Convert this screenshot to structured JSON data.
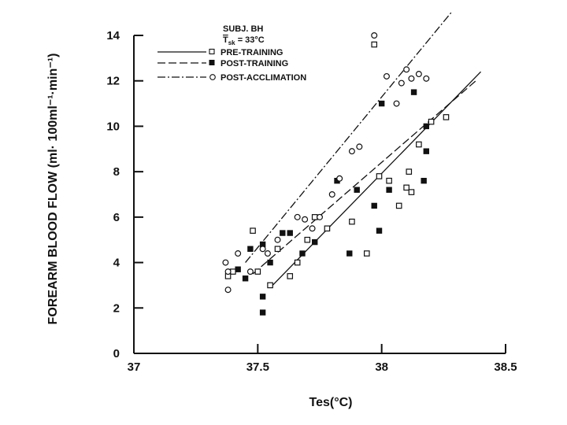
{
  "chart_data": {
    "type": "scatter",
    "xlabel": "Tes(°C)",
    "ylabel": "FOREARM BLOOD FLOW (ml· 100ml⁻¹·min⁻¹)",
    "xlim": [
      37,
      38.5
    ],
    "ylim": [
      0,
      14
    ],
    "x_ticks": [
      "37",
      "37.5",
      "38",
      "38.5"
    ],
    "y_ticks": [
      "0",
      "2",
      "4",
      "6",
      "8",
      "10",
      "12",
      "14"
    ],
    "annotation": {
      "subject": "SUBJ. BH",
      "tsk_symbol": "T",
      "tsk_sub": "sk",
      "tsk_value": " = 33°C"
    },
    "legend_position": "top-left",
    "series": [
      {
        "name": "PRE-TRAINING",
        "marker": "open-square",
        "line_style": "solid",
        "line": [
          [
            37.56,
            3.0
          ],
          [
            38.4,
            12.4
          ]
        ],
        "points": [
          [
            37.4,
            3.6
          ],
          [
            37.38,
            3.4
          ],
          [
            37.48,
            5.4
          ],
          [
            37.5,
            3.6
          ],
          [
            37.55,
            3.0
          ],
          [
            37.58,
            4.6
          ],
          [
            37.63,
            3.4
          ],
          [
            37.66,
            4.0
          ],
          [
            37.7,
            5.0
          ],
          [
            37.73,
            6.0
          ],
          [
            37.78,
            5.5
          ],
          [
            37.88,
            5.8
          ],
          [
            37.94,
            4.4
          ],
          [
            37.97,
            13.6
          ],
          [
            37.99,
            7.8
          ],
          [
            38.03,
            7.6
          ],
          [
            38.1,
            7.3
          ],
          [
            38.12,
            7.1
          ],
          [
            38.11,
            8.0
          ],
          [
            38.07,
            6.5
          ],
          [
            38.2,
            10.2
          ],
          [
            38.26,
            10.4
          ],
          [
            38.15,
            9.2
          ]
        ]
      },
      {
        "name": "POST-TRAINING",
        "marker": "filled-square",
        "line_style": "dashed",
        "line": [
          [
            37.48,
            3.5
          ],
          [
            38.38,
            12.0
          ]
        ],
        "points": [
          [
            37.42,
            3.7
          ],
          [
            37.45,
            3.3
          ],
          [
            37.47,
            4.6
          ],
          [
            37.52,
            2.5
          ],
          [
            37.52,
            1.8
          ],
          [
            37.52,
            4.8
          ],
          [
            37.55,
            4.0
          ],
          [
            37.6,
            5.3
          ],
          [
            37.63,
            5.3
          ],
          [
            37.68,
            4.4
          ],
          [
            37.73,
            4.9
          ],
          [
            37.82,
            7.6
          ],
          [
            37.87,
            4.4
          ],
          [
            37.9,
            7.2
          ],
          [
            37.97,
            6.5
          ],
          [
            37.99,
            5.4
          ],
          [
            38.0,
            11.0
          ],
          [
            38.03,
            7.2
          ],
          [
            38.13,
            11.5
          ],
          [
            38.18,
            10.0
          ],
          [
            38.18,
            8.9
          ],
          [
            38.17,
            7.6
          ]
        ]
      },
      {
        "name": "POST-ACCLIMATION",
        "marker": "open-circle",
        "line_style": "dash-dot",
        "line": [
          [
            37.45,
            4.0
          ],
          [
            38.28,
            15.0
          ]
        ],
        "points": [
          [
            37.37,
            4.0
          ],
          [
            37.38,
            3.6
          ],
          [
            37.38,
            2.8
          ],
          [
            37.42,
            4.4
          ],
          [
            37.47,
            3.6
          ],
          [
            37.52,
            4.6
          ],
          [
            37.54,
            4.4
          ],
          [
            37.58,
            5.0
          ],
          [
            37.66,
            6.0
          ],
          [
            37.69,
            5.9
          ],
          [
            37.72,
            5.5
          ],
          [
            37.75,
            6.0
          ],
          [
            37.8,
            7.0
          ],
          [
            37.83,
            7.7
          ],
          [
            37.88,
            8.9
          ],
          [
            37.91,
            9.1
          ],
          [
            37.97,
            14.0
          ],
          [
            38.02,
            12.2
          ],
          [
            38.06,
            11.0
          ],
          [
            38.08,
            11.9
          ],
          [
            38.12,
            12.1
          ],
          [
            38.15,
            12.3
          ],
          [
            38.18,
            12.1
          ],
          [
            38.1,
            12.5
          ]
        ]
      }
    ]
  }
}
